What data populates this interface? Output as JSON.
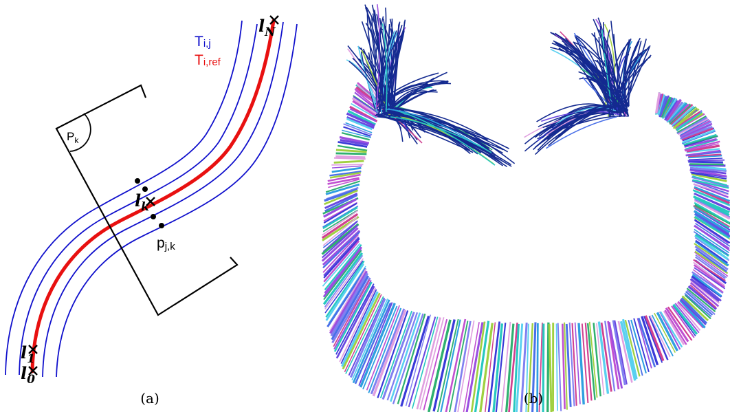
{
  "panel_a": {
    "legend": {
      "tij": "T",
      "tij_sub": "i,j",
      "tiref": "T",
      "tiref_sub": "i,ref"
    },
    "plane_label": "P",
    "plane_label_sub": "k",
    "point_label": "p",
    "point_label_sub": "j,k",
    "landmarks": {
      "n": {
        "base": "l",
        "sub": "N"
      },
      "k": {
        "base": "l",
        "sub": "k"
      },
      "one": {
        "base": "l",
        "sub": "1"
      },
      "zero": {
        "base": "l",
        "sub": "0"
      }
    },
    "caption": "(a)",
    "colors": {
      "tracts": "#1010cc",
      "reference": "#e81010",
      "plane": "#000000"
    }
  },
  "panel_b": {
    "caption": "(b)",
    "colors": [
      "#3a3ad8",
      "#6a48e0",
      "#2f9fe0",
      "#28c8c0",
      "#9a4fe0",
      "#c050d0",
      "#2fb070",
      "#4a70e8",
      "#e0a0e0",
      "#5ad0f0",
      "#8080f0",
      "#a0d040",
      "#d04090",
      "#1a2a9a"
    ]
  }
}
